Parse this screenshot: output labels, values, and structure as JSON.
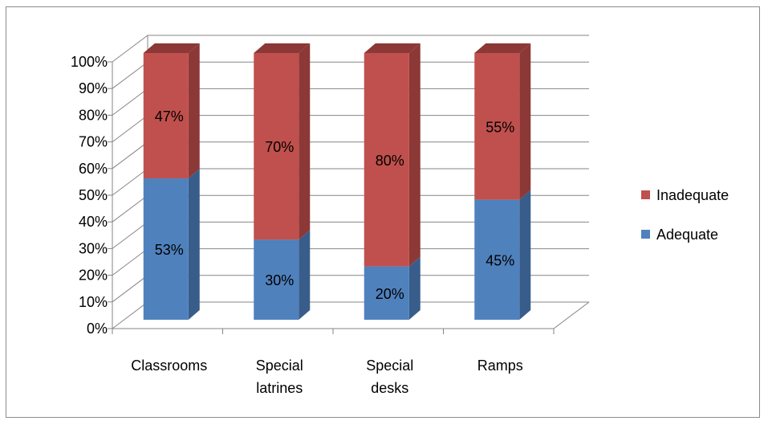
{
  "chart_data": {
    "type": "bar",
    "stacked": true,
    "percent_stacked": true,
    "three_d": true,
    "title": "",
    "xlabel": "",
    "ylabel": "",
    "ylim": [
      0,
      100
    ],
    "y_tick_step": 10,
    "y_tick_format": "percent",
    "grid": true,
    "legend_position": "right",
    "categories": [
      [
        "Classrooms"
      ],
      [
        "Special",
        "latrines"
      ],
      [
        "Special",
        "desks"
      ],
      [
        "Ramps"
      ]
    ],
    "series": [
      {
        "name": "Adequate",
        "values": [
          53,
          30,
          20,
          45
        ],
        "labels": [
          "53%",
          "30%",
          "20%",
          "45%"
        ],
        "color": "#4f81bd",
        "side_color": "#385d8a",
        "top_color": "#95b3d7"
      },
      {
        "name": "Inadequate",
        "values": [
          47,
          70,
          80,
          55
        ],
        "labels": [
          "47%",
          "70%",
          "80%",
          "55%"
        ],
        "color": "#c0504d",
        "side_color": "#8c3836",
        "top_color": "#d99694"
      }
    ],
    "legend_order": [
      "Inadequate",
      "Adequate"
    ]
  }
}
